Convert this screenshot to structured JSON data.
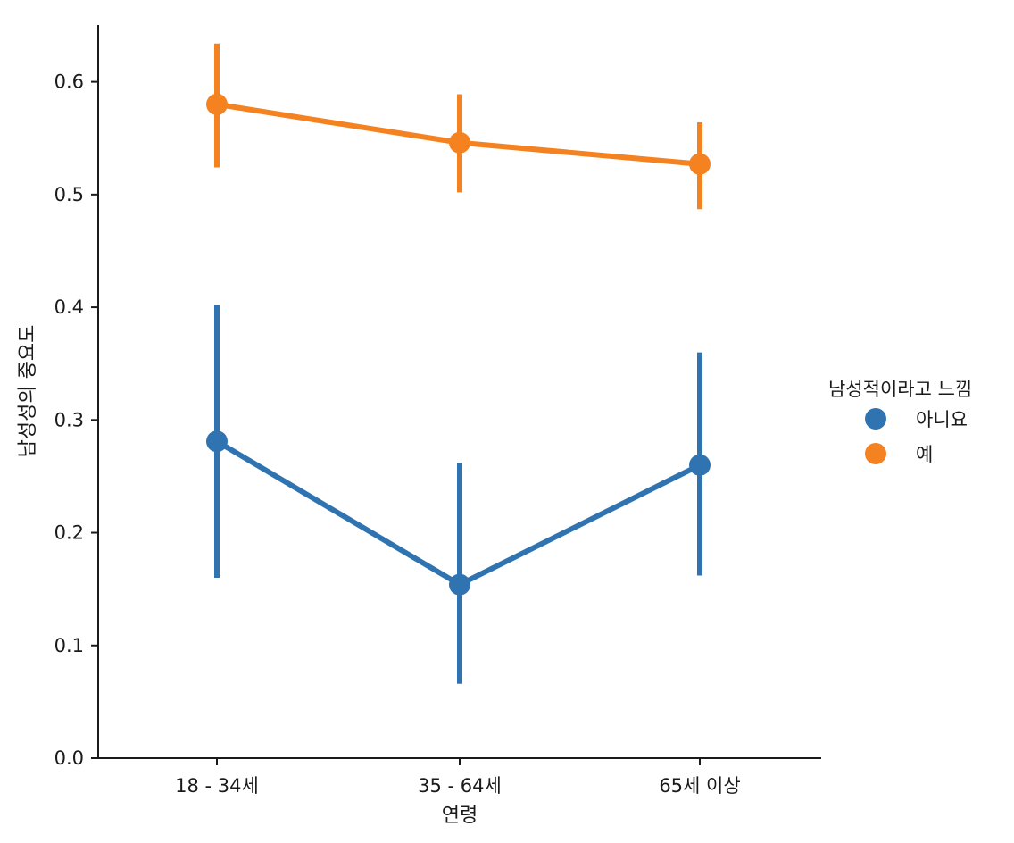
{
  "chart_data": {
    "type": "line",
    "title": "",
    "xlabel": "연령",
    "ylabel": "남성성의 중요도",
    "categories": [
      "18 - 34세",
      "35 - 64세",
      "65세 이상"
    ],
    "ylim": [
      0.0,
      0.65
    ],
    "yticks": [
      0.0,
      0.1,
      0.2,
      0.3,
      0.4,
      0.5,
      0.6
    ],
    "ytick_labels": [
      "0.0",
      "0.1",
      "0.2",
      "0.3",
      "0.4",
      "0.5",
      "0.6"
    ],
    "grid": false,
    "legend": {
      "title": "남성적이라고 느낌",
      "placement": "right"
    },
    "series": [
      {
        "name": "아니요",
        "color": "#2f74b1",
        "values": [
          0.281,
          0.154,
          0.26
        ],
        "ci_low": [
          0.16,
          0.066,
          0.162
        ],
        "ci_high": [
          0.402,
          0.262,
          0.36
        ]
      },
      {
        "name": "예",
        "color": "#f58220",
        "values": [
          0.58,
          0.546,
          0.527
        ],
        "ci_low": [
          0.524,
          0.502,
          0.487
        ],
        "ci_high": [
          0.634,
          0.589,
          0.564
        ]
      }
    ]
  }
}
